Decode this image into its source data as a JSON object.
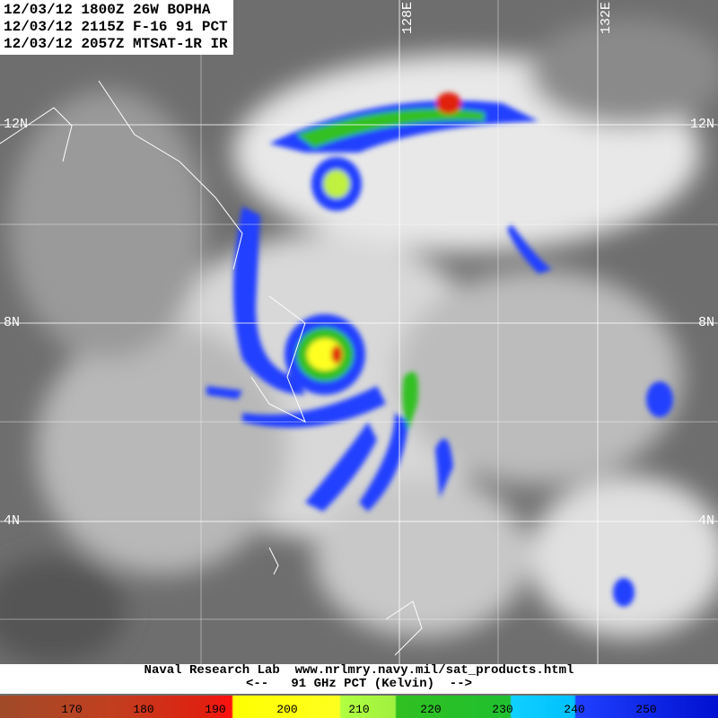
{
  "header": {
    "lines": [
      "12/03/12 1800Z 26W BOPHA",
      "12/03/12 2115Z F-16 91 PCT",
      "12/03/12 2057Z MTSAT-1R IR"
    ]
  },
  "grid": {
    "latitudes": [
      "12N",
      "8N",
      "4N"
    ],
    "longitudes": [
      "128E",
      "132E"
    ]
  },
  "footer": {
    "lines": [
      "Naval Research Lab  www.nrlmry.navy.mil/sat_products.html",
      "<--   91 GHz PCT (Kelvin)  -->"
    ]
  },
  "colorbar": {
    "labels": [
      170,
      180,
      190,
      200,
      210,
      220,
      230,
      240,
      250
    ]
  }
}
